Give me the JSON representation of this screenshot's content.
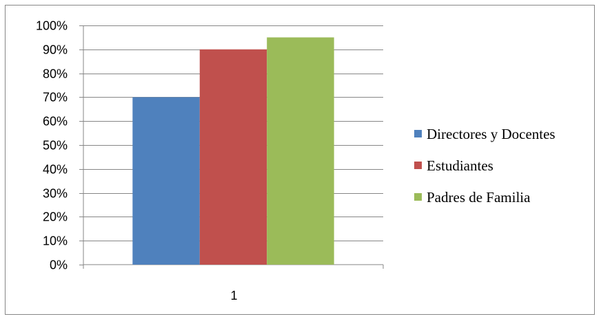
{
  "chart_data": {
    "type": "bar",
    "categories": [
      "1"
    ],
    "series": [
      {
        "name": "Directores y Docentes",
        "values": [
          0.7
        ],
        "color": "#4F81BD"
      },
      {
        "name": "Estudiantes",
        "values": [
          0.9
        ],
        "color": "#C0504D"
      },
      {
        "name": "Padres de Familia",
        "values": [
          0.95
        ],
        "color": "#9BBB59"
      }
    ],
    "ylim": [
      0,
      1
    ],
    "ytick_labels": [
      "0%",
      "10%",
      "20%",
      "30%",
      "40%",
      "50%",
      "60%",
      "70%",
      "80%",
      "90%",
      "100%"
    ],
    "grid": true,
    "legend_position": "right",
    "title": "",
    "xlabel": "",
    "ylabel": ""
  }
}
